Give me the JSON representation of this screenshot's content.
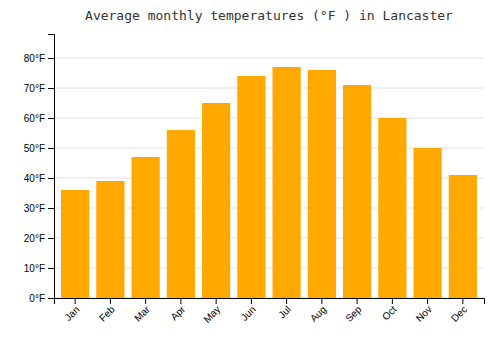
{
  "chart_data": {
    "type": "bar",
    "title": "Average monthly temperatures (°F ) in Lancaster",
    "categories": [
      "Jan",
      "Feb",
      "Mar",
      "Apr",
      "May",
      "Jun",
      "Jul",
      "Aug",
      "Sep",
      "Oct",
      "Nov",
      "Dec"
    ],
    "values": [
      36,
      39,
      47,
      56,
      65,
      74,
      77,
      76,
      71,
      60,
      50,
      41
    ],
    "color": "#FFA800",
    "ylim": [
      0,
      88
    ],
    "yticks": [
      {
        "value": 0,
        "label": "0°F"
      },
      {
        "value": 10,
        "label": "10°F"
      },
      {
        "value": 20,
        "label": "20°F"
      },
      {
        "value": 30,
        "label": "30°F"
      },
      {
        "value": 40,
        "label": "40°F"
      },
      {
        "value": 50,
        "label": "50°F"
      },
      {
        "value": 60,
        "label": "60°F"
      },
      {
        "value": 70,
        "label": "70°F"
      },
      {
        "value": 80,
        "label": "80°F"
      }
    ],
    "grid": true
  }
}
